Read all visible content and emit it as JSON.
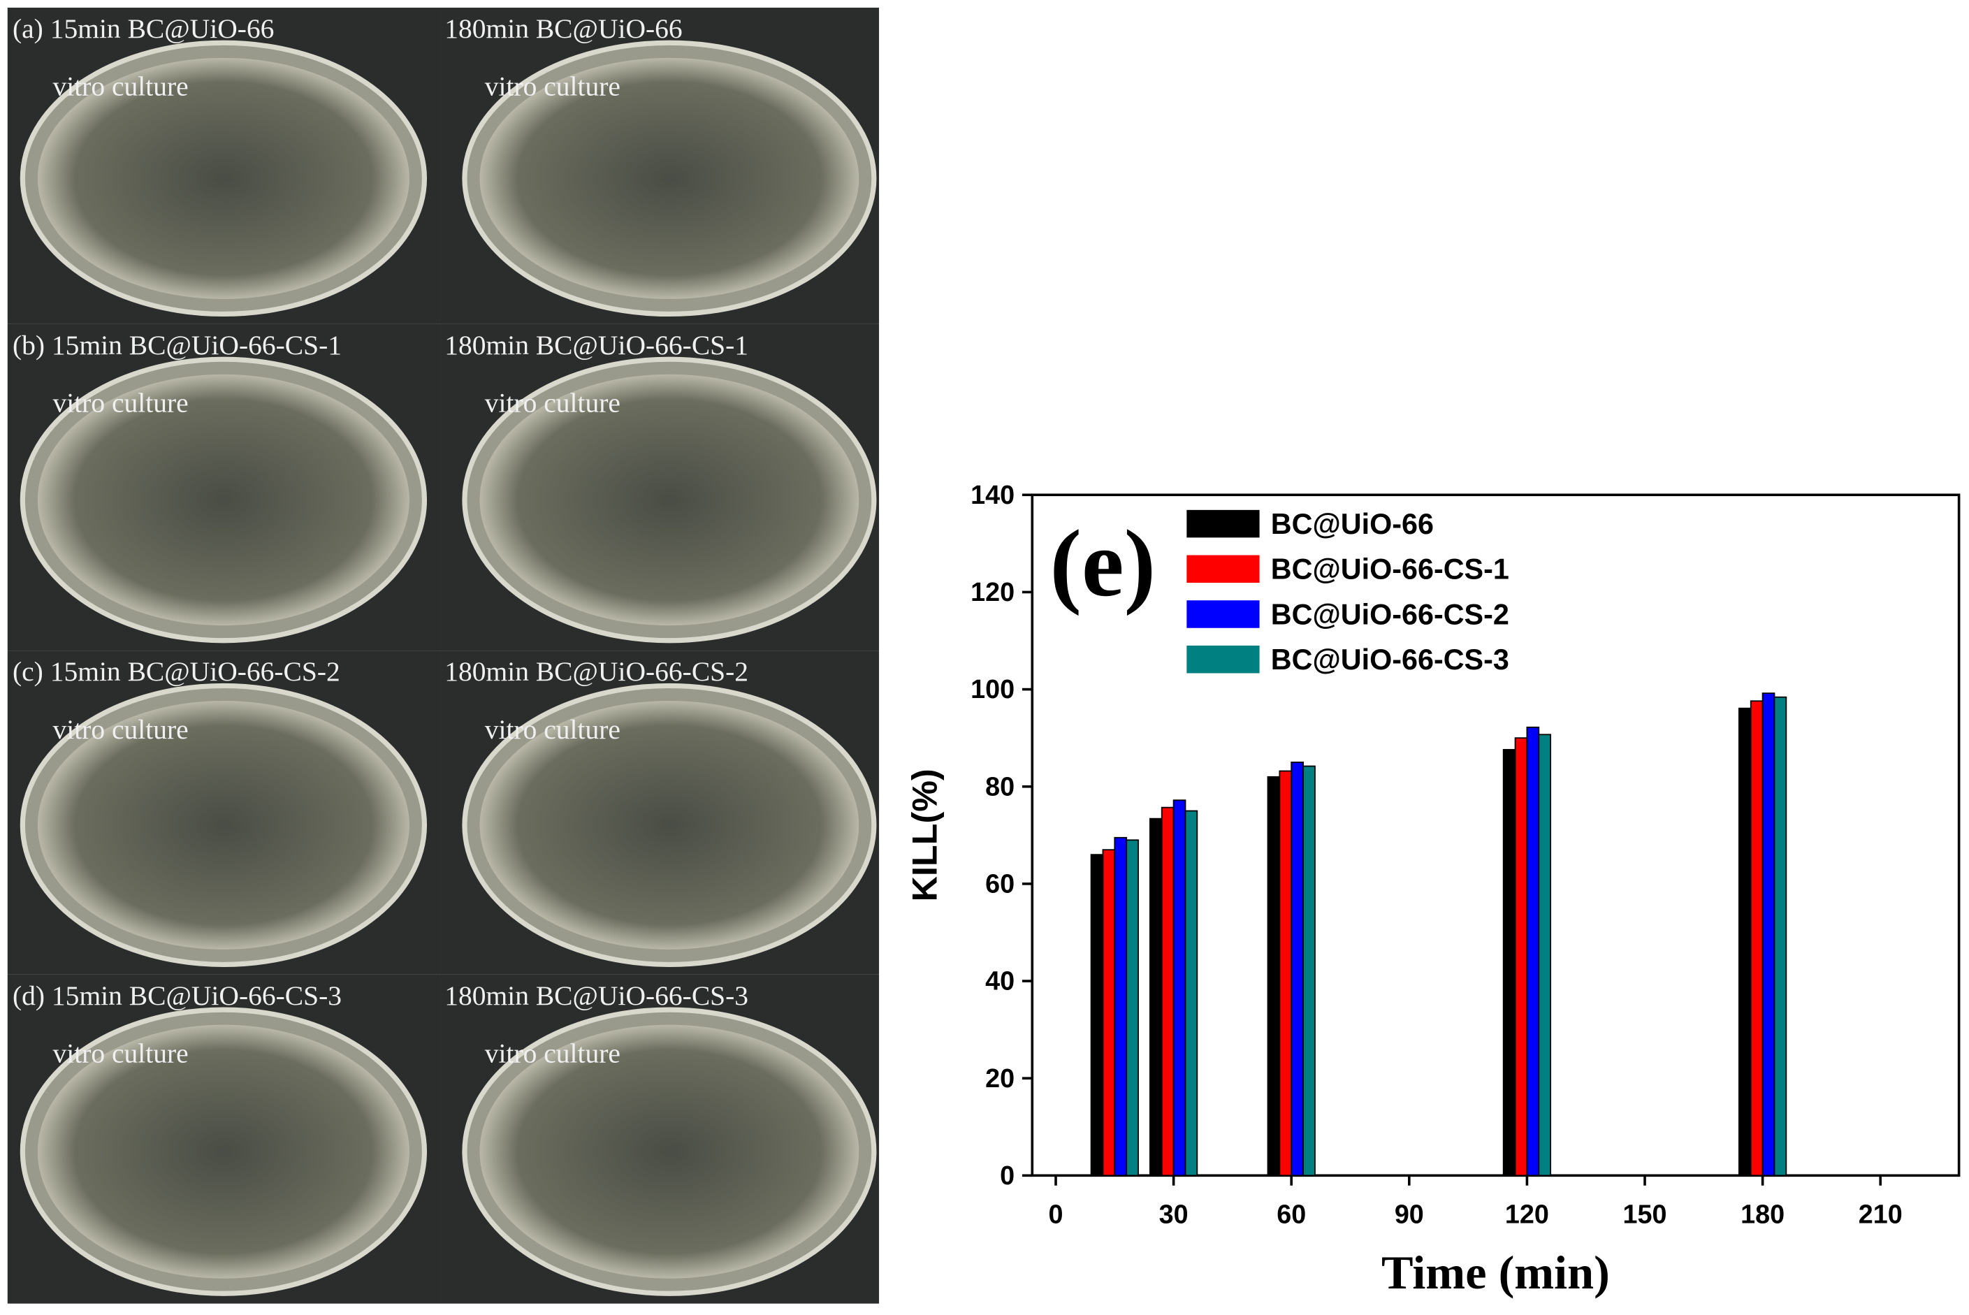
{
  "photos": {
    "panels": [
      {
        "title": "(a) 15min BC@UiO-66",
        "caption": "vitro culture"
      },
      {
        "title": "180min BC@UiO-66",
        "caption": "vitro culture"
      },
      {
        "title": "(b) 15min BC@UiO-66-CS-1",
        "caption": "vitro culture"
      },
      {
        "title": "180min BC@UiO-66-CS-1",
        "caption": "vitro culture"
      },
      {
        "title": "(c) 15min BC@UiO-66-CS-2",
        "caption": "vitro culture"
      },
      {
        "title": "180min BC@UiO-66-CS-2",
        "caption": "vitro culture"
      },
      {
        "title": "(d) 15min BC@UiO-66-CS-3",
        "caption": "vitro culture"
      },
      {
        "title": "180min BC@UiO-66-CS-3",
        "caption": "vitro culture"
      }
    ]
  },
  "chart_data": {
    "type": "bar",
    "annotation": "(e)",
    "x_label": "Time (min)",
    "y_label": "KILL(%)",
    "x": [
      15,
      30,
      60,
      120,
      180
    ],
    "series": [
      {
        "name": "BC@UiO-66",
        "color": "#000000",
        "values": [
          66,
          73.4,
          82,
          87.6,
          96.1
        ]
      },
      {
        "name": "BC@UiO-66-CS-1",
        "color": "#ff0000",
        "values": [
          67,
          75.7,
          83.2,
          90,
          97.6
        ]
      },
      {
        "name": "BC@UiO-66-CS-2",
        "color": "#0000ff",
        "values": [
          69.5,
          77.2,
          85,
          92.2,
          99.2
        ]
      },
      {
        "name": "BC@UiO-66-CS-3",
        "color": "#008080",
        "values": [
          69,
          75,
          84.2,
          90.7,
          98.4
        ]
      }
    ],
    "xlim": [
      -6,
      230
    ],
    "xticks": [
      0,
      30,
      60,
      90,
      120,
      150,
      180,
      210
    ],
    "ylim": [
      0,
      140
    ],
    "yticks": [
      0,
      20,
      40,
      60,
      80,
      100,
      120,
      140
    ],
    "grid": false,
    "legend": "upper left"
  }
}
